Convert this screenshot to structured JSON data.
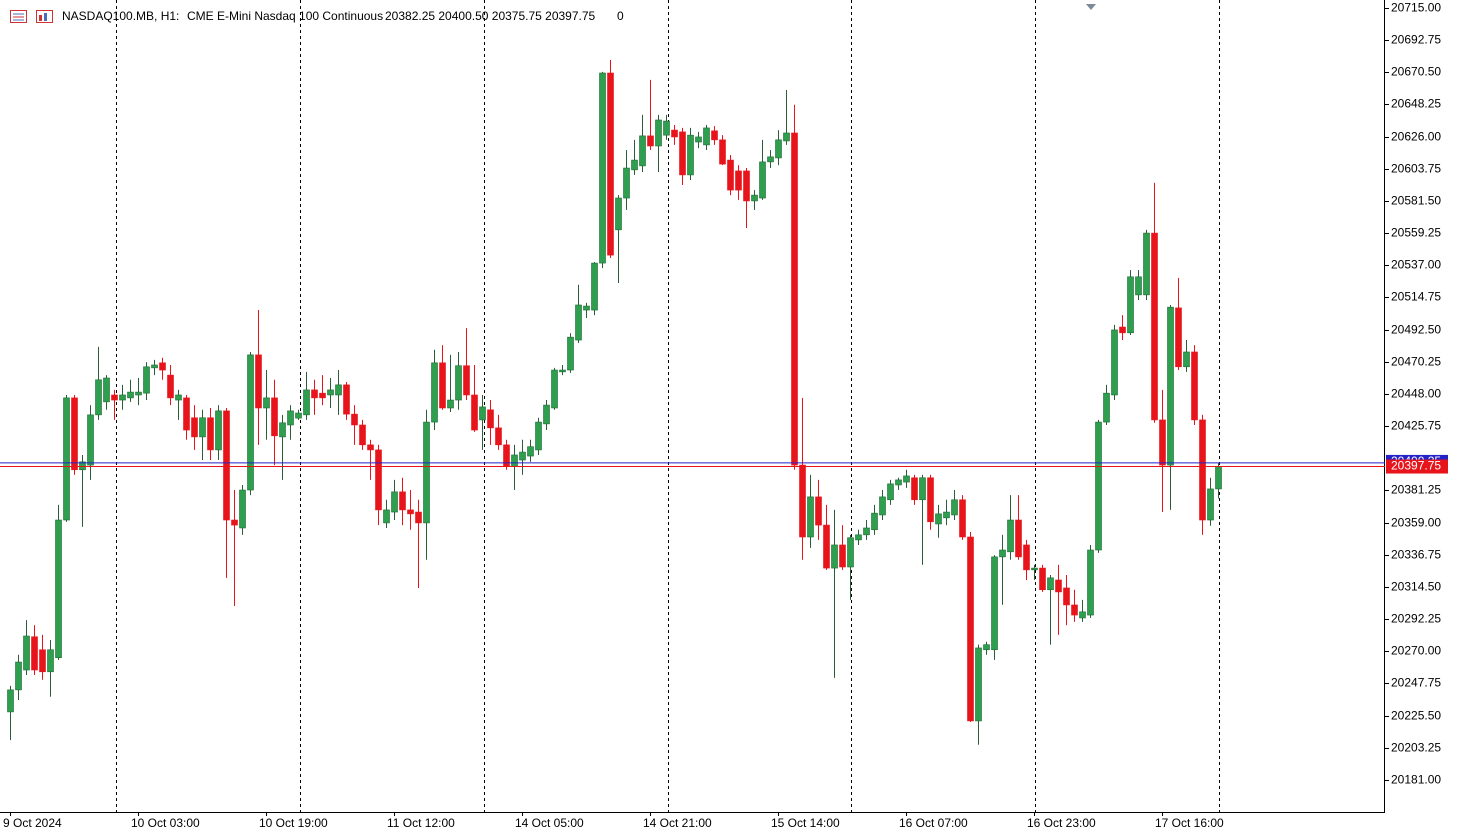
{
  "chart_data": {
    "type": "candlestick",
    "header": {
      "symbol": "NASDAQ100.MB, H1:",
      "description": "CME E-Mini Nasdaq 100 Continuous",
      "ohlc": "20382.25 20400.50 20375.75 20397.75",
      "volume": "0"
    },
    "up_color": "#2e9e4f",
    "down_color": "#e8141c",
    "ask_color": "#2323c8",
    "bid_color": "#e8141c",
    "ylim": [
      20158.75,
      20720.5
    ],
    "yticks": [
      {
        "value": 20715,
        "label": "20715.00"
      },
      20692.75,
      {
        "value": 20670.5,
        "label": "20670.50"
      },
      20648.25,
      {
        "value": 20626,
        "label": "20626.00"
      },
      20603.75,
      {
        "value": 20581.5,
        "label": "20581.50"
      },
      20559.25,
      {
        "value": 20537,
        "label": "20537.00"
      },
      20514.75,
      {
        "value": 20492.5,
        "label": "20492.50"
      },
      20470.25,
      {
        "value": 20448,
        "label": "20448.00"
      },
      20425.75,
      {
        "value": 20381.25,
        "label": "20381.25"
      },
      {
        "value": 20359,
        "label": "20359.00"
      },
      20336.75,
      {
        "value": 20314.5,
        "label": "20314.50"
      },
      20292.25,
      {
        "value": 20270,
        "label": "20270.00"
      },
      20247.75,
      {
        "value": 20225.5,
        "label": "20225.50"
      },
      20203.25,
      {
        "value": 20181,
        "label": "20181.00"
      }
    ],
    "ask": 20400.25,
    "bid": 20397.75,
    "categories": [
      "9 Oct 2024",
      null,
      null,
      null,
      null,
      null,
      null,
      null,
      null,
      null,
      null,
      null,
      null,
      null,
      null,
      null,
      "10 Oct 03:00",
      null,
      null,
      null,
      null,
      null,
      null,
      null,
      null,
      null,
      null,
      null,
      null,
      null,
      null,
      null,
      "10 Oct 19:00",
      null,
      null,
      null,
      null,
      null,
      null,
      null,
      null,
      null,
      null,
      null,
      null,
      null,
      null,
      null,
      "11 Oct 12:00",
      null,
      null,
      null,
      null,
      null,
      null,
      null,
      null,
      null,
      null,
      null,
      null,
      null,
      null,
      null,
      "14 Oct 05:00",
      null,
      null,
      null,
      null,
      null,
      null,
      null,
      null,
      null,
      null,
      null,
      null,
      null,
      null,
      null,
      "14 Oct 21:00",
      null,
      null,
      null,
      null,
      null,
      null,
      null,
      null,
      null,
      null,
      null,
      null,
      null,
      null,
      null,
      "15 Oct 14:00",
      null,
      null,
      null,
      null,
      null,
      null,
      null,
      null,
      null,
      null,
      null,
      null,
      null,
      null,
      null,
      "16 Oct 07:00",
      null,
      null,
      null,
      null,
      null,
      null,
      null,
      null,
      null,
      null,
      null,
      null,
      null,
      null,
      null,
      "16 Oct 23:00",
      null,
      null,
      null,
      null,
      null,
      null,
      null,
      null,
      null,
      null,
      null,
      null,
      null,
      null,
      null,
      "17 Oct 16:00",
      null,
      null,
      null,
      null,
      null,
      null,
      null
    ],
    "open": [
      20228.0,
      20243.25,
      20257.0,
      20280.0,
      20271.0,
      20255.75,
      20265.5,
      20360.75,
      20445.25,
      20395.5,
      20398.75,
      20433.5,
      20442.5,
      20447.25,
      20443.75,
      20445.25,
      20447.25,
      20448.5,
      20466.0,
      20469.5,
      20461.0,
      20443.75,
      20445.25,
      20431.5,
      20418.25,
      20431.5,
      20409.25,
      20436.25,
      20360.75,
      20355.25,
      20381.5,
      20475.0,
      20438.25,
      20445.25,
      20418.25,
      20426.5,
      20431.25,
      20433.5,
      20450.75,
      20448.5,
      20447.25,
      20447.25,
      20454.25,
      20434.0,
      20426.5,
      20412.75,
      20409.25,
      20358.75,
      20366.25,
      20380.25,
      20367.75,
      20366.25,
      20358.75,
      20428.5,
      20469.5,
      20438.25,
      20443.75,
      20467.5,
      20447.25,
      20430.0,
      20437.0,
      20424.5,
      20412.75,
      20398.0,
      20402.25,
      20405.0,
      20409.25,
      20427.25,
      20438.25,
      20463.25,
      20464.5,
      20485.25,
      20506.0,
      20506.0,
      20538.5,
      20670.0,
      20561.5,
      20583.5,
      20603.0,
      20605.75,
      20626.5,
      20619.5,
      20627.0,
      20630.5,
      20629.25,
      20599.5,
      20622.25,
      20620.25,
      20630.0,
      20623.75,
      20609.75,
      20602.25,
      20602.25,
      20581.5,
      20583.5,
      20608.5,
      20611.25,
      20623.0,
      20628.5,
      20398.75,
      20349.0,
      20376.75,
      20357.25,
      20327.5,
      20343.5,
      20328.25,
      20347.0,
      20350.5,
      20354.0,
      20364.25,
      20374.75,
      20385.0,
      20387.0,
      20390.0,
      20374.75,
      20390.0,
      20358.0,
      20362.25,
      20364.25,
      20374.75,
      20349.0,
      20221.75,
      20271.0,
      20271.0,
      20335.25,
      20338.75,
      20360.75,
      20343.5,
      20326.25,
      20327.5,
      20312.5,
      20319.25,
      20313.75,
      20302.0,
      20293.0,
      20295.0,
      20340.0,
      20428.5,
      20447.25,
      20494.25,
      20490.25,
      20516.5,
      20516.5,
      20559.25,
      20430.0,
      20398.75,
      20507.5,
      20466.75,
      20477.0,
      20430.0,
      20360.75,
      20382.25
    ],
    "high": [
      20246.0,
      20267.5,
      20291.5,
      20288.0,
      20281.25,
      20277.75,
      20371.25,
      20447.25,
      20447.25,
      20405.75,
      20440.25,
      20480.5,
      20461.0,
      20450.75,
      20454.25,
      20457.75,
      20459.0,
      20470.0,
      20471.5,
      20473.0,
      20468.0,
      20450.75,
      20447.25,
      20440.25,
      20437.0,
      20438.25,
      20440.25,
      20438.25,
      20381.5,
      20385.0,
      20477.0,
      20506.0,
      20464.5,
      20457.75,
      20433.5,
      20440.25,
      20437.0,
      20463.25,
      20457.75,
      20461.0,
      20459.0,
      20464.5,
      20456.25,
      20440.25,
      20430.0,
      20416.25,
      20412.75,
      20374.75,
      20388.5,
      20390.0,
      20381.5,
      20374.75,
      20437.0,
      20478.5,
      20481.75,
      20475.0,
      20477.0,
      20493.5,
      20468.0,
      20447.25,
      20443.75,
      20433.5,
      20416.25,
      20412.75,
      20416.25,
      20416.25,
      20431.5,
      20443.75,
      20466.0,
      20468.0,
      20490.0,
      20523.5,
      20511.0,
      20539.25,
      20670.75,
      20679.0,
      20585.5,
      20616.75,
      20623.75,
      20641.0,
      20665.25,
      20641.0,
      20641.0,
      20634.0,
      20632.0,
      20632.0,
      20629.25,
      20634.0,
      20633.25,
      20627.0,
      20613.25,
      20606.25,
      20604.25,
      20589.0,
      20623.75,
      20616.75,
      20630.5,
      20658.25,
      20648.0,
      20445.25,
      20392.0,
      20388.5,
      20371.25,
      20367.75,
      20357.25,
      20350.5,
      20354.0,
      20360.75,
      20371.25,
      20381.5,
      20388.5,
      20390.0,
      20395.5,
      20392.0,
      20392.0,
      20392.0,
      20371.25,
      20374.75,
      20381.5,
      20378.0,
      20352.5,
      20274.5,
      20276.5,
      20336.5,
      20350.5,
      20378.0,
      20378.0,
      20347.0,
      20329.75,
      20329.75,
      20322.75,
      20329.75,
      20322.75,
      20312.5,
      20305.5,
      20343.5,
      20430.0,
      20454.25,
      20495.75,
      20502.5,
      20533.75,
      20533.75,
      20561.5,
      20594.0,
      20450.75,
      20509.5,
      20528.25,
      20485.25,
      20481.75,
      20433.5,
      20390.0,
      20400.5
    ],
    "low": [
      20208.5,
      20236.25,
      20253.5,
      20253.5,
      20250.25,
      20238.5,
      20264.0,
      20359.5,
      20392.0,
      20356.0,
      20388.5,
      20430.0,
      20437.0,
      20430.0,
      20437.0,
      20442.5,
      20440.25,
      20443.75,
      20461.0,
      20457.75,
      20440.25,
      20430.0,
      20416.25,
      20409.25,
      20402.25,
      20402.25,
      20402.25,
      20320.75,
      20301.25,
      20350.5,
      20378.0,
      20412.75,
      20416.25,
      20398.75,
      20388.5,
      20416.25,
      20430.0,
      20430.0,
      20433.5,
      20440.25,
      20438.25,
      20433.5,
      20430.0,
      20412.75,
      20409.25,
      20388.5,
      20357.25,
      20355.25,
      20360.75,
      20357.25,
      20354.0,
      20313.75,
      20333.25,
      20423.0,
      20437.0,
      20435.5,
      20437.0,
      20443.75,
      20421.75,
      20409.25,
      20412.75,
      20409.25,
      20395.5,
      20381.5,
      20392.0,
      20401.0,
      20405.75,
      20423.0,
      20437.0,
      20461.0,
      20462.5,
      20483.25,
      20500.5,
      20502.5,
      20535.0,
      20542.0,
      20524.75,
      20575.25,
      20599.5,
      20601.5,
      20616.75,
      20601.5,
      20623.75,
      20620.25,
      20592.5,
      20596.0,
      20618.0,
      20616.75,
      20620.25,
      20606.25,
      20585.5,
      20582.25,
      20562.75,
      20575.25,
      20582.25,
      20604.25,
      20606.25,
      20620.25,
      20395.5,
      20333.25,
      20341.5,
      20347.0,
      20326.25,
      20251.5,
      20326.25,
      20305.5,
      20343.5,
      20347.0,
      20350.5,
      20360.75,
      20371.25,
      20381.5,
      20383.0,
      20371.25,
      20329.75,
      20354.0,
      20348.5,
      20357.25,
      20360.75,
      20347.0,
      20221.0,
      20205.25,
      20267.5,
      20264.0,
      20302.0,
      20333.25,
      20333.25,
      20319.25,
      20319.25,
      20311.0,
      20274.5,
      20281.25,
      20288.0,
      20290.25,
      20290.25,
      20293.0,
      20338.0,
      20426.5,
      20443.75,
      20485.25,
      20488.75,
      20513.0,
      20513.0,
      20428.0,
      20366.25,
      20367.75,
      20464.5,
      20463.25,
      20426.5,
      20350.5,
      20356.75,
      20375.75
    ],
    "close": [
      20243.25,
      20262.5,
      20280.5,
      20257.0,
      20255.75,
      20271.0,
      20360.75,
      20445.25,
      20395.5,
      20401.0,
      20433.5,
      20457.75,
      20459.0,
      20443.75,
      20447.25,
      20449.25,
      20449.25,
      20466.75,
      20468.0,
      20464.5,
      20445.25,
      20447.25,
      20423.0,
      20418.25,
      20431.5,
      20409.25,
      20436.25,
      20360.75,
      20357.25,
      20381.5,
      20475.0,
      20438.25,
      20445.25,
      20419.0,
      20428.0,
      20436.25,
      20434.75,
      20450.75,
      20445.25,
      20445.25,
      20450.75,
      20454.25,
      20434.0,
      20426.5,
      20412.75,
      20409.25,
      20367.75,
      20367.75,
      20380.25,
      20367.75,
      20365.0,
      20358.75,
      20428.5,
      20469.5,
      20438.25,
      20443.75,
      20467.5,
      20447.25,
      20423.0,
      20439.0,
      20424.5,
      20412.75,
      20398.0,
      20405.75,
      20407.75,
      20411.5,
      20428.5,
      20440.25,
      20464.5,
      20464.5,
      20487.25,
      20509.5,
      20508.75,
      20538.5,
      20670.0,
      20544.0,
      20583.5,
      20604.25,
      20609.75,
      20626.5,
      20619.5,
      20637.5,
      20636.75,
      20625.75,
      20599.5,
      20627.0,
      20625.75,
      20632.0,
      20623.75,
      20607.0,
      20589.0,
      20589.0,
      20581.5,
      20585.5,
      20608.5,
      20612.0,
      20623.75,
      20628.5,
      20398.75,
      20349.0,
      20376.75,
      20357.25,
      20327.5,
      20343.5,
      20328.25,
      20348.5,
      20350.5,
      20355.25,
      20365.5,
      20376.75,
      20385.75,
      20388.5,
      20391.25,
      20374.75,
      20390.0,
      20359.5,
      20365.0,
      20366.25,
      20374.75,
      20349.0,
      20221.75,
      20272.25,
      20274.5,
      20335.25,
      20340.0,
      20360.75,
      20335.25,
      20326.25,
      20327.5,
      20312.5,
      20320.75,
      20311.0,
      20302.0,
      20295.0,
      20297.25,
      20340.0,
      20428.5,
      20448.5,
      20492.25,
      20490.25,
      20529.0,
      20529.0,
      20559.25,
      20430.0,
      20398.75,
      20508.0,
      20466.75,
      20477.0,
      20430.0,
      20360.75,
      20382.25,
      20397.75
    ]
  }
}
